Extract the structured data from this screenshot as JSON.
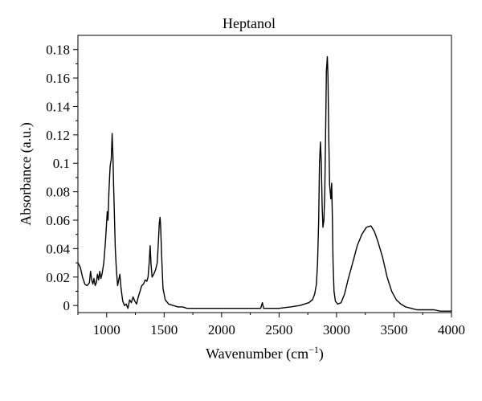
{
  "chart_data": {
    "type": "line",
    "title": "Heptanol",
    "xlabel": "Wavenumber (cm",
    "xlabel_sup": "−1",
    "xlabel_end": ")",
    "ylabel": "Absorbance (a.u.)",
    "xlim": [
      750,
      4000
    ],
    "ylim": [
      -0.005,
      0.19
    ],
    "xticks": [
      1000,
      1500,
      2000,
      2500,
      3000,
      3500,
      4000
    ],
    "xtick_labels": [
      "1000",
      "1500",
      "2000",
      "2500",
      "3000",
      "3500",
      "4000"
    ],
    "yticks": [
      0,
      0.02,
      0.04,
      0.06,
      0.08,
      0.1,
      0.12,
      0.14,
      0.16,
      0.18
    ],
    "ytick_labels": [
      "0",
      "0.02",
      "0.04",
      "0.06",
      "0.08",
      "0.1",
      "0.12",
      "0.14",
      "0.16",
      "0.18"
    ],
    "grid": false,
    "line_color": "#000000",
    "series": [
      {
        "x": [
          750,
          770,
          790,
          810,
          830,
          850,
          860,
          870,
          880,
          890,
          900,
          910,
          920,
          930,
          940,
          950,
          960,
          975,
          990,
          1005,
          1012,
          1020,
          1030,
          1040,
          1048,
          1055,
          1060,
          1068,
          1075,
          1085,
          1095,
          1105,
          1115,
          1125,
          1140,
          1155,
          1170,
          1185,
          1200,
          1215,
          1230,
          1245,
          1260,
          1275,
          1290,
          1305,
          1320,
          1335,
          1350,
          1360,
          1370,
          1378,
          1385,
          1395,
          1410,
          1425,
          1440,
          1450,
          1458,
          1465,
          1470,
          1478,
          1490,
          1510,
          1540,
          1580,
          1620,
          1660,
          1700,
          1750,
          1800,
          1900,
          2000,
          2100,
          2200,
          2300,
          2340,
          2355,
          2365,
          2380,
          2420,
          2500,
          2600,
          2680,
          2720,
          2760,
          2790,
          2810,
          2825,
          2835,
          2845,
          2852,
          2860,
          2868,
          2875,
          2882,
          2890,
          2898,
          2905,
          2912,
          2920,
          2926,
          2932,
          2940,
          2950,
          2958,
          2964,
          2970,
          2978,
          2990,
          3010,
          3040,
          3070,
          3100,
          3140,
          3180,
          3220,
          3260,
          3300,
          3330,
          3360,
          3400,
          3440,
          3480,
          3520,
          3560,
          3600,
          3650,
          3700,
          3750,
          3800,
          3850,
          3900,
          3950,
          4000
        ],
        "y": [
          0.03,
          0.027,
          0.02,
          0.015,
          0.014,
          0.016,
          0.024,
          0.018,
          0.015,
          0.019,
          0.014,
          0.016,
          0.022,
          0.018,
          0.024,
          0.019,
          0.022,
          0.03,
          0.045,
          0.066,
          0.06,
          0.08,
          0.098,
          0.103,
          0.121,
          0.105,
          0.085,
          0.062,
          0.04,
          0.025,
          0.014,
          0.018,
          0.022,
          0.012,
          0.003,
          0.0,
          0.001,
          -0.002,
          0.004,
          0.002,
          0.006,
          0.003,
          0.001,
          0.006,
          0.01,
          0.014,
          0.015,
          0.018,
          0.017,
          0.02,
          0.03,
          0.042,
          0.03,
          0.02,
          0.022,
          0.025,
          0.03,
          0.045,
          0.058,
          0.062,
          0.055,
          0.035,
          0.012,
          0.004,
          0.001,
          0.0,
          -0.001,
          -0.001,
          -0.002,
          -0.002,
          -0.002,
          -0.002,
          -0.002,
          -0.002,
          -0.002,
          -0.002,
          -0.002,
          0.002,
          -0.002,
          -0.002,
          -0.002,
          -0.002,
          -0.001,
          0.0,
          0.001,
          0.002,
          0.004,
          0.008,
          0.015,
          0.03,
          0.06,
          0.1,
          0.115,
          0.1,
          0.07,
          0.055,
          0.06,
          0.08,
          0.12,
          0.165,
          0.175,
          0.16,
          0.12,
          0.085,
          0.075,
          0.086,
          0.06,
          0.03,
          0.01,
          0.003,
          0.001,
          0.002,
          0.008,
          0.018,
          0.03,
          0.042,
          0.05,
          0.055,
          0.056,
          0.052,
          0.045,
          0.034,
          0.02,
          0.01,
          0.004,
          0.001,
          -0.001,
          -0.002,
          -0.003,
          -0.003,
          -0.003,
          -0.003,
          -0.004,
          -0.004,
          -0.004
        ]
      }
    ]
  }
}
